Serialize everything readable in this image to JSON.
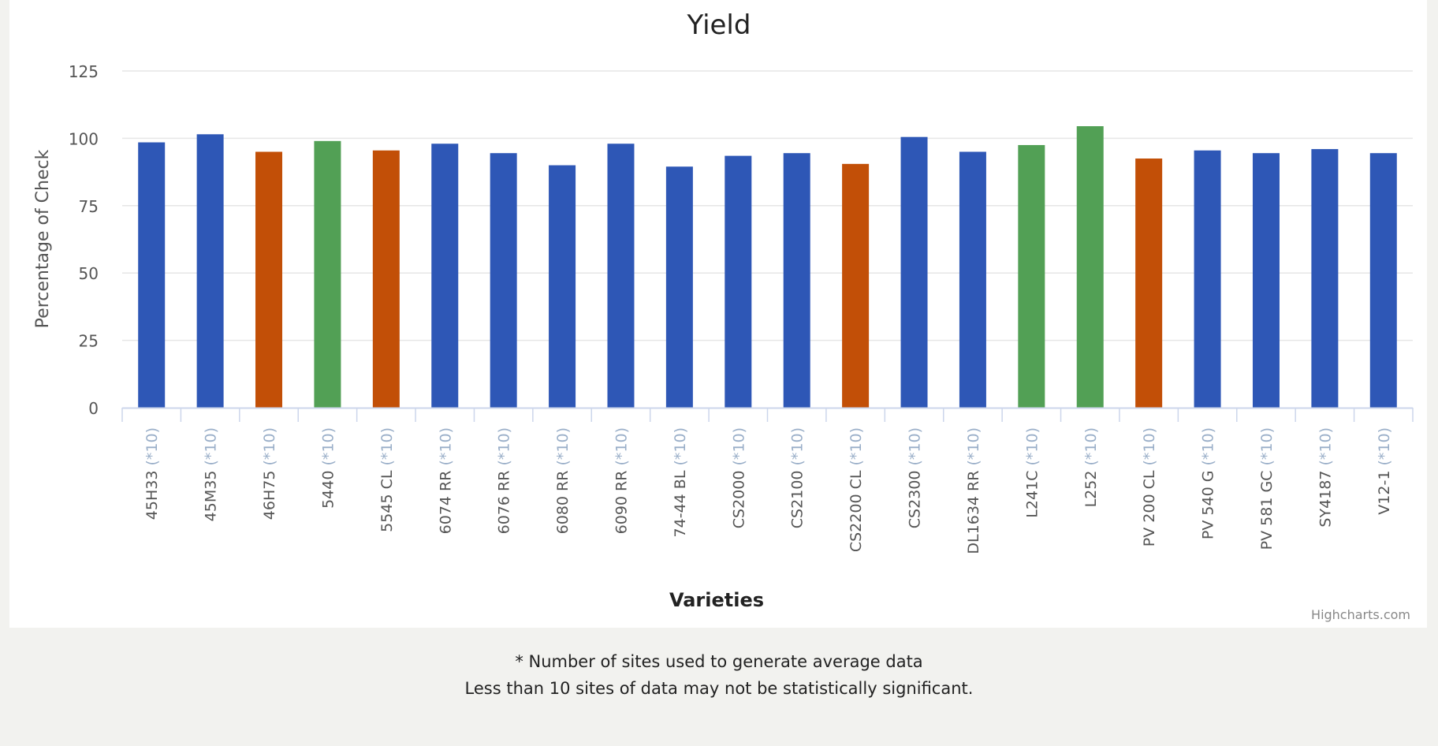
{
  "chart_data": {
    "type": "bar",
    "title": "Yield",
    "xlabel": "Varieties",
    "ylabel": "Percentage of Check",
    "ylim": [
      0,
      125
    ],
    "yticks": [
      "0",
      "25",
      "50",
      "75",
      "100",
      "125"
    ],
    "grid": true,
    "legend": "none",
    "categories": [
      {
        "name": "45H33",
        "sites": "(*10)"
      },
      {
        "name": "45M35",
        "sites": "(*10)"
      },
      {
        "name": "46H75",
        "sites": "(*10)"
      },
      {
        "name": "5440",
        "sites": "(*10)"
      },
      {
        "name": "5545 CL",
        "sites": "(*10)"
      },
      {
        "name": "6074 RR",
        "sites": "(*10)"
      },
      {
        "name": "6076 RR",
        "sites": "(*10)"
      },
      {
        "name": "6080 RR",
        "sites": "(*10)"
      },
      {
        "name": "6090 RR",
        "sites": "(*10)"
      },
      {
        "name": "74-44 BL",
        "sites": "(*10)"
      },
      {
        "name": "CS2000",
        "sites": "(*10)"
      },
      {
        "name": "CS2100",
        "sites": "(*10)"
      },
      {
        "name": "CS2200 CL",
        "sites": "(*10)"
      },
      {
        "name": "CS2300",
        "sites": "(*10)"
      },
      {
        "name": "DL1634 RR",
        "sites": "(*10)"
      },
      {
        "name": "L241C",
        "sites": "(*10)"
      },
      {
        "name": "L252",
        "sites": "(*10)"
      },
      {
        "name": "PV 200 CL",
        "sites": "(*10)"
      },
      {
        "name": "PV 540 G",
        "sites": "(*10)"
      },
      {
        "name": "PV 581 GC",
        "sites": "(*10)"
      },
      {
        "name": "SY4187",
        "sites": "(*10)"
      },
      {
        "name": "V12-1",
        "sites": "(*10)"
      }
    ],
    "values": [
      98.5,
      101.5,
      95,
      99,
      95.5,
      98,
      94.5,
      90,
      98,
      89.5,
      93.5,
      94.5,
      90.5,
      100.5,
      95,
      97.5,
      104.5,
      92.5,
      95.5,
      94.5,
      96,
      94.5
    ],
    "bar_colors": [
      "blue",
      "blue",
      "orange",
      "green",
      "orange",
      "blue",
      "blue",
      "blue",
      "blue",
      "blue",
      "blue",
      "blue",
      "orange",
      "blue",
      "blue",
      "green",
      "green",
      "orange",
      "blue",
      "blue",
      "blue",
      "blue"
    ]
  },
  "colors": {
    "blue": "#2e57b6",
    "orange": "#c24f07",
    "green": "#52a055",
    "grid": "#e6e6e6",
    "axis": "#ccd6eb",
    "tick_label": "#555555",
    "sites_label": "#99aec8",
    "title": "#222222"
  },
  "credits": "Highcharts.com",
  "footnote": {
    "line1": "* Number of sites used to generate average data",
    "line2": "Less than 10 sites of data may not be statistically significant."
  }
}
